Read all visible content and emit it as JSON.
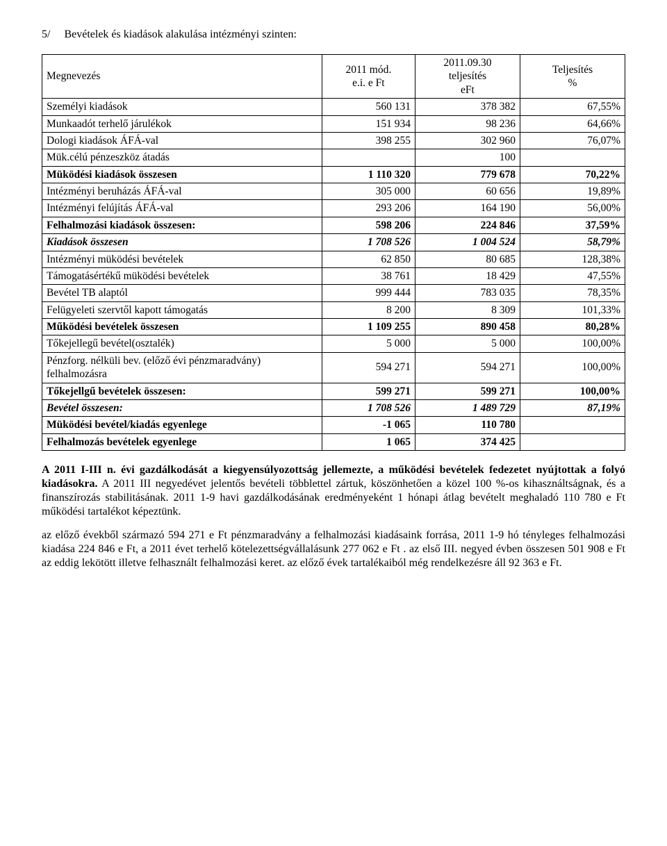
{
  "title_prefix": "5/",
  "title_text": "Bevételek és kiadások alakulása intézményi szinten:",
  "headers": {
    "name": "Megnevezés",
    "col1_l1": "2011 mód.",
    "col1_l2": "e.i. e Ft",
    "col2_l1": "2011.09.30",
    "col2_l2": "teljesítés",
    "col2_l3": "eFt",
    "col3_l1": "Teljesítés",
    "col3_l2": "%"
  },
  "rows": [
    {
      "label": "Személyi kiadások",
      "c1": "560 131",
      "c2": "378 382",
      "c3": "67,55%",
      "bold": false,
      "italic": false
    },
    {
      "label": "Munkaadót terhelő járulékok",
      "c1": "151 934",
      "c2": "98 236",
      "c3": "64,66%",
      "bold": false,
      "italic": false
    },
    {
      "label": "Dologi kiadások ÁFÁ-val",
      "c1": "398 255",
      "c2": "302 960",
      "c3": "76,07%",
      "bold": false,
      "italic": false
    },
    {
      "label": "Mük.célú pénzeszköz átadás",
      "c1": "",
      "c2": "100",
      "c3": "",
      "bold": false,
      "italic": false
    },
    {
      "label": "Müködési kiadások összesen",
      "c1": "1 110 320",
      "c2": "779 678",
      "c3": "70,22%",
      "bold": true,
      "italic": false
    },
    {
      "label": "Intézményi beruházás ÁFÁ-val",
      "c1": "305 000",
      "c2": "60 656",
      "c3": "19,89%",
      "bold": false,
      "italic": false
    },
    {
      "label": "Intézményi felújítás ÁFÁ-val",
      "c1": "293 206",
      "c2": "164 190",
      "c3": "56,00%",
      "bold": false,
      "italic": false
    },
    {
      "label": "Felhalmozási kiadások összesen:",
      "c1": "598 206",
      "c2": "224 846",
      "c3": "37,59%",
      "bold": true,
      "italic": false
    },
    {
      "label": "Kiadások összesen",
      "c1": "1 708 526",
      "c2": "1 004 524",
      "c3": "58,79%",
      "bold": true,
      "italic": true
    },
    {
      "label": "Intézményi müködési bevételek",
      "c1": "62 850",
      "c2": "80 685",
      "c3": "128,38%",
      "bold": false,
      "italic": false
    },
    {
      "label": "Támogatásértékű müködési bevételek",
      "c1": "38 761",
      "c2": "18 429",
      "c3": "47,55%",
      "bold": false,
      "italic": false
    },
    {
      "label": "Bevétel TB alaptól",
      "c1": "999 444",
      "c2": "783 035",
      "c3": "78,35%",
      "bold": false,
      "italic": false
    },
    {
      "label": "Felügyeleti szervtől kapott támogatás",
      "c1": "8 200",
      "c2": "8 309",
      "c3": "101,33%",
      "bold": false,
      "italic": false
    },
    {
      "label": "Működési bevételek összesen",
      "c1": "1 109 255",
      "c2": "890 458",
      "c3": "80,28%",
      "bold": true,
      "italic": false
    },
    {
      "label": "Tőkejellegű bevétel(osztalék)",
      "c1": "5 000",
      "c2": "5 000",
      "c3": "100,00%",
      "bold": false,
      "italic": false
    },
    {
      "label": "Pénzforg. nélküli bev. (előző évi pénzmaradvány) felhalmozásra",
      "c1": "594 271",
      "c2": "594 271",
      "c3": "100,00%",
      "bold": false,
      "italic": false
    },
    {
      "label": "Tőkejellgű bevételek összesen:",
      "c1": "599 271",
      "c2": "599 271",
      "c3": "100,00%",
      "bold": true,
      "italic": false
    },
    {
      "label": "Bevétel összesen:",
      "c1": "1 708 526",
      "c2": "1 489 729",
      "c3": "87,19%",
      "bold": true,
      "italic": true
    },
    {
      "label": "Müködési bevétel/kiadás egyenlege",
      "c1": "-1 065",
      "c2": "110 780",
      "c3": "",
      "bold": true,
      "italic": false
    },
    {
      "label": "Felhalmozás bevételek egyenlege",
      "c1": "1 065",
      "c2": "374 425",
      "c3": "",
      "bold": true,
      "italic": false
    }
  ],
  "para1_bold": "A 2011 I-III n. évi gazdálkodását a kiegyensúlyozottság jellemezte, a működési bevételek fedezetet nyújtottak a folyó kiadásokra.",
  "para1_rest": " A 2011 III negyedévet  jelentős bevételi többlettel zártuk, köszönhetően a közel 100 %-os kihasználtságnak, és a finanszírozás stabilitásának. 2011 1-9 havi gazdálkodásának eredményeként 1 hónapi átlag bevételt meghaladó 110 780 e Ft működési tartalékot képeztünk.",
  "para2": " az  előző évekből származó 594 271 e Ft pénzmaradvány a felhalmozási kiadásaink forrása, 2011 1-9 hó tényleges felhalmozási kiadása 224 846 e Ft, a 2011 évet terhelő kötelezettségvállalásunk 277 062 e Ft .  az  első III. negyed évben összesen 501 908 e Ft  az eddig lekötött illetve felhasznált felhalmozási keret.  az  előző évek tartalékaiból még rendelkezésre áll 92 363 e Ft."
}
